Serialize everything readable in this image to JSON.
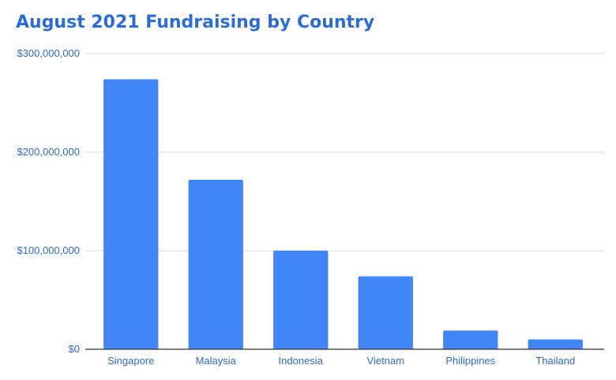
{
  "colors": {
    "bar": "#4285f4",
    "title": "#2d6bd4",
    "tick_text": "#2f6ac9",
    "grid": "#d9d9d9",
    "baseline": "#333333"
  },
  "chart_data": {
    "type": "bar",
    "title": "August 2021 Fundraising by Country",
    "xlabel": "",
    "ylabel": "",
    "categories": [
      "Singapore",
      "Malaysia",
      "Indonesia",
      "Vietnam",
      "Philippines",
      "Thailand"
    ],
    "values": [
      274000000,
      172000000,
      100000000,
      74000000,
      19000000,
      10000000
    ],
    "ylim": [
      0,
      300000000
    ],
    "yticks": [
      0,
      100000000,
      200000000,
      300000000
    ],
    "ytick_labels": [
      "$0",
      "$100,000,000",
      "$200,000,000",
      "$300,000,000"
    ],
    "grid": true,
    "legend": "none"
  }
}
